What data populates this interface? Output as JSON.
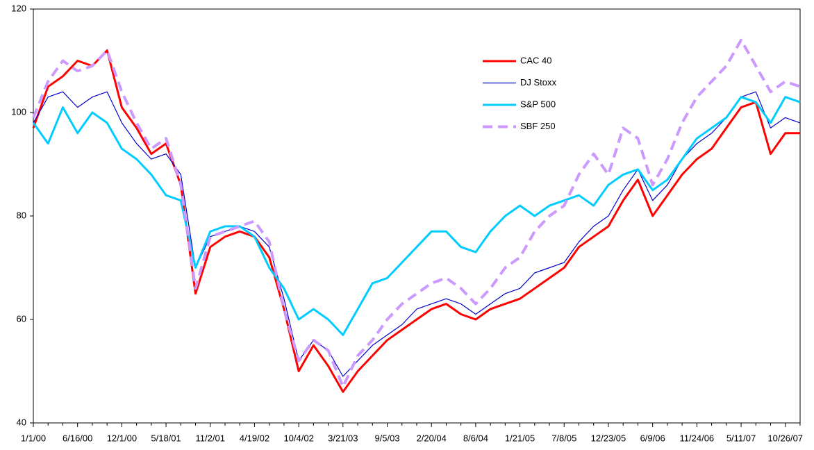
{
  "chart_data": {
    "type": "line",
    "categories": [
      "1/1/00",
      null,
      null,
      "6/16/00",
      null,
      null,
      "12/1/00",
      null,
      null,
      "5/18/01",
      null,
      null,
      "11/2/01",
      null,
      null,
      "4/19/02",
      null,
      null,
      "10/4/02",
      null,
      null,
      "3/21/03",
      null,
      null,
      "9/5/03",
      null,
      null,
      "2/20/04",
      null,
      null,
      "8/6/04",
      null,
      null,
      "1/21/05",
      null,
      null,
      "7/8/05",
      null,
      null,
      "12/23/05",
      null,
      null,
      "6/9/06",
      null,
      null,
      "11/24/06",
      null,
      null,
      "5/11/07",
      null,
      null,
      "10/26/07",
      null
    ],
    "series": [
      {
        "name": "CAC 40",
        "color": "#ff0000",
        "width": 3,
        "style": "solid",
        "values": [
          97,
          105,
          107,
          110,
          109,
          112,
          101,
          97,
          92,
          94,
          86,
          65,
          74,
          76,
          77,
          76,
          72,
          62,
          50,
          55,
          51,
          46,
          50,
          53,
          56,
          58,
          60,
          62,
          63,
          61,
          60,
          62,
          63,
          64,
          66,
          68,
          70,
          74,
          76,
          78,
          83,
          87,
          80,
          84,
          88,
          91,
          93,
          97,
          101,
          102,
          92,
          96,
          96
        ]
      },
      {
        "name": "DJ Stoxx",
        "color": "#0000cc",
        "width": 1.2,
        "style": "solid",
        "values": [
          98,
          103,
          104,
          101,
          103,
          104,
          98,
          94,
          91,
          92,
          88,
          70,
          76,
          77,
          78,
          77,
          74,
          64,
          52,
          56,
          54,
          49,
          52,
          55,
          57,
          59,
          62,
          63,
          64,
          63,
          61,
          63,
          65,
          66,
          69,
          70,
          71,
          75,
          78,
          80,
          85,
          89,
          83,
          86,
          91,
          94,
          96,
          99,
          103,
          104,
          97,
          99,
          98
        ]
      },
      {
        "name": "S&P 500",
        "color": "#00ccff",
        "width": 3,
        "style": "solid",
        "values": [
          98,
          94,
          101,
          96,
          100,
          98,
          93,
          91,
          88,
          84,
          83,
          70,
          77,
          78,
          78,
          76,
          70,
          66,
          60,
          62,
          60,
          57,
          62,
          67,
          68,
          71,
          74,
          77,
          77,
          74,
          73,
          77,
          80,
          82,
          80,
          82,
          83,
          84,
          82,
          86,
          88,
          89,
          85,
          87,
          91,
          95,
          97,
          99,
          103,
          102,
          98,
          103,
          102
        ]
      },
      {
        "name": "SBF 250",
        "color": "#cc99ff",
        "width": 4,
        "style": "dashed",
        "values": [
          99,
          106,
          110,
          108,
          109,
          112,
          104,
          98,
          93,
          95,
          86,
          66,
          76,
          77,
          78,
          79,
          75,
          62,
          52,
          56,
          54,
          47,
          53,
          56,
          60,
          63,
          65,
          67,
          68,
          66,
          63,
          66,
          70,
          72,
          77,
          80,
          82,
          88,
          92,
          88,
          97,
          95,
          86,
          91,
          98,
          103,
          106,
          109,
          114,
          109,
          104,
          106,
          105
        ]
      }
    ],
    "ylim": [
      40,
      120
    ],
    "yticks": [
      40,
      60,
      80,
      100,
      120
    ],
    "grid": false,
    "legend": "upper right"
  }
}
